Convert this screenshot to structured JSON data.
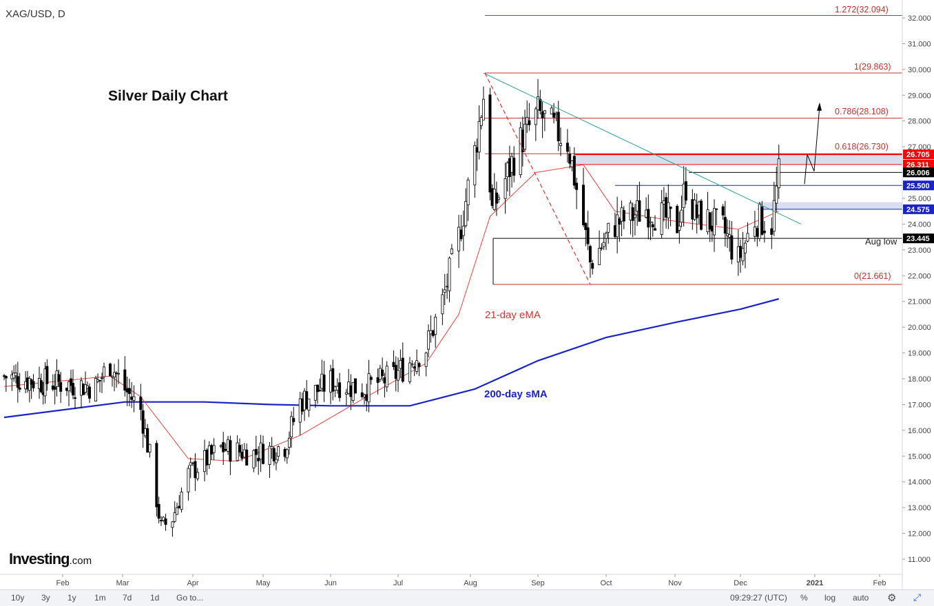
{
  "header": {
    "symbol_label": "XAG/USD, D"
  },
  "annotations": {
    "title": "Silver Daily Chart",
    "ema_label": "21-day eMA",
    "sma_label": "200-day sMA",
    "aug_low_label": "Aug low"
  },
  "logo": {
    "brand": "Investing",
    "suffix": ".com"
  },
  "fib_levels": [
    {
      "label": "1.272(32.094)",
      "value": 32.094
    },
    {
      "label": "1(29.863)",
      "value": 29.863
    },
    {
      "label": "0.786(28.108)",
      "value": 28.108
    },
    {
      "label": "0.618(26.730)",
      "value": 26.73
    },
    {
      "label": "0(21.661)",
      "value": 21.661
    }
  ],
  "price_badges": [
    {
      "text": "26.705",
      "value": 26.705,
      "color": "#ff0000"
    },
    {
      "text": "26.311",
      "value": 26.311,
      "color": "#ff0000"
    },
    {
      "text": "26.006",
      "value": 26.006,
      "color": "#000000"
    },
    {
      "text": "25.500",
      "value": 25.5,
      "color": "#1a22c9"
    },
    {
      "text": "24.575",
      "value": 24.575,
      "color": "#1a22c9"
    },
    {
      "text": "23.445",
      "value": 23.445,
      "color": "#000000"
    }
  ],
  "bottom_bar": {
    "ranges": [
      "10y",
      "3y",
      "1y",
      "1m",
      "7d",
      "1d"
    ],
    "goto": "Go to...",
    "clock": "09:29:27 (UTC)",
    "percent": "%",
    "log": "log",
    "auto": "auto",
    "gear_icon": "gear-icon",
    "fullscreen_icon": "expand-icon"
  },
  "colors": {
    "candle": "#000000",
    "ema": "#e8433c",
    "sma": "#1a22c9",
    "trendline": "#2a9d8f",
    "fib": "#c8302c",
    "zone": "#d9ddf0"
  },
  "chart_data": {
    "type": "candlestick",
    "title": "Silver Daily Chart",
    "symbol": "XAG/USD, D",
    "x_tick_labels": [
      "Feb",
      "Mar",
      "Apr",
      "May",
      "Jun",
      "Jul",
      "Aug",
      "Sep",
      "Oct",
      "Nov",
      "Dec",
      "2021",
      "Feb"
    ],
    "y_tick_labels": [
      "11.000",
      "12.000",
      "13.000",
      "14.000",
      "15.000",
      "16.000",
      "17.000",
      "18.000",
      "19.000",
      "20.000",
      "21.000",
      "22.000",
      "23.000",
      "24.000",
      "25.000",
      "26.000",
      "27.000",
      "28.000",
      "29.000",
      "30.000",
      "31.000",
      "32.000"
    ],
    "ylim": [
      10.4,
      32.6
    ],
    "approx_close_path": [
      [
        "2020-01-02",
        18.1
      ],
      [
        "2020-01-20",
        17.9
      ],
      [
        "2020-02-03",
        17.8
      ],
      [
        "2020-02-17",
        17.7
      ],
      [
        "2020-02-24",
        18.6
      ],
      [
        "2020-03-02",
        17.6
      ],
      [
        "2020-03-09",
        16.8
      ],
      [
        "2020-03-13",
        15.0
      ],
      [
        "2020-03-18",
        12.2
      ],
      [
        "2020-03-23",
        12.6
      ],
      [
        "2020-03-30",
        14.3
      ],
      [
        "2020-04-13",
        15.3
      ],
      [
        "2020-04-27",
        15.1
      ],
      [
        "2020-05-11",
        15.4
      ],
      [
        "2020-05-18",
        17.1
      ],
      [
        "2020-06-01",
        17.9
      ],
      [
        "2020-06-15",
        17.6
      ],
      [
        "2020-06-29",
        18.1
      ],
      [
        "2020-07-13",
        19.2
      ],
      [
        "2020-07-20",
        21.0
      ],
      [
        "2020-07-27",
        23.5
      ],
      [
        "2020-08-03",
        26.8
      ],
      [
        "2020-08-07",
        29.0
      ],
      [
        "2020-08-11",
        24.5
      ],
      [
        "2020-08-24",
        27.2
      ],
      [
        "2020-09-01",
        28.3
      ],
      [
        "2020-09-14",
        27.2
      ],
      [
        "2020-09-21",
        24.0
      ],
      [
        "2020-09-24",
        22.5
      ],
      [
        "2020-10-05",
        24.0
      ],
      [
        "2020-10-19",
        24.6
      ],
      [
        "2020-11-02",
        24.0
      ],
      [
        "2020-11-06",
        25.5
      ],
      [
        "2020-11-10",
        24.4
      ],
      [
        "2020-11-23",
        23.8
      ],
      [
        "2020-11-30",
        22.6
      ],
      [
        "2020-12-07",
        24.2
      ],
      [
        "2020-12-14",
        24.0
      ],
      [
        "2020-12-17",
        25.9
      ]
    ],
    "series": [
      {
        "name": "21-day eMA"
      },
      {
        "name": "200-day sMA"
      }
    ],
    "ema_path": [
      [
        "2020-01-02",
        17.7
      ],
      [
        "2020-02-24",
        18.1
      ],
      [
        "2020-03-09",
        17.3
      ],
      [
        "2020-03-30",
        14.9
      ],
      [
        "2020-04-20",
        14.8
      ],
      [
        "2020-05-18",
        15.8
      ],
      [
        "2020-06-15",
        17.2
      ],
      [
        "2020-07-13",
        18.6
      ],
      [
        "2020-07-27",
        20.5
      ],
      [
        "2020-08-10",
        24.3
      ],
      [
        "2020-08-31",
        26.0
      ],
      [
        "2020-09-21",
        26.3
      ],
      [
        "2020-10-05",
        24.5
      ],
      [
        "2020-11-02",
        24.1
      ],
      [
        "2020-11-30",
        23.8
      ],
      [
        "2020-12-17",
        24.5
      ]
    ],
    "sma_path": [
      [
        "2020-01-02",
        16.5
      ],
      [
        "2020-03-02",
        17.1
      ],
      [
        "2020-04-06",
        17.1
      ],
      [
        "2020-05-04",
        17.0
      ],
      [
        "2020-06-01",
        16.95
      ],
      [
        "2020-07-06",
        16.95
      ],
      [
        "2020-08-03",
        17.6
      ],
      [
        "2020-09-01",
        18.7
      ],
      [
        "2020-10-01",
        19.6
      ],
      [
        "2020-11-02",
        20.2
      ],
      [
        "2020-12-01",
        20.7
      ],
      [
        "2020-12-17",
        21.1
      ]
    ],
    "trendline": {
      "from": [
        "2020-08-07",
        29.86
      ],
      "to": [
        "2020-12-21",
        24.0
      ]
    },
    "aug_low": 23.445,
    "horizontal_levels": [
      26.705,
      26.311,
      26.006,
      25.5,
      24.575,
      23.445
    ],
    "grid": false,
    "legend": "none"
  }
}
